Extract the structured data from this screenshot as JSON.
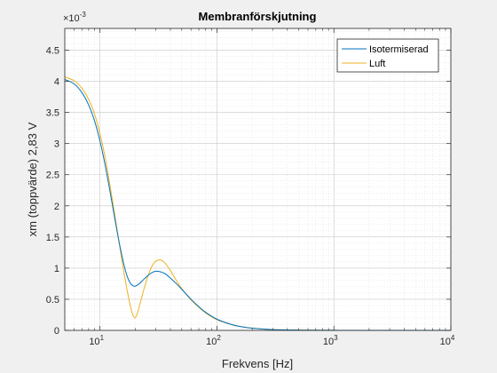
{
  "chart_data": {
    "type": "line",
    "title": "Membranförskjutning",
    "xlabel": "Frekvens [Hz]",
    "ylabel": "xm (toppvärde) 2,83 V",
    "x_scale": "log",
    "xlim": [
      5,
      10000
    ],
    "ylim": [
      0,
      0.00485
    ],
    "y_exponent_label": "×10",
    "y_exponent_power": "-3",
    "y_tick_values": [
      0,
      0.0005,
      0.001,
      0.0015,
      0.002,
      0.0025,
      0.003,
      0.0035,
      0.004,
      0.0045
    ],
    "y_tick_labels": [
      "0",
      "0.5",
      "1",
      "1.5",
      "2",
      "2.5",
      "3",
      "3.5",
      "4",
      "4.5"
    ],
    "x_tick_values": [
      10,
      100,
      1000,
      10000
    ],
    "x_tick_bases": [
      "10",
      "10",
      "10",
      "10"
    ],
    "x_tick_powers": [
      "1",
      "2",
      "3",
      "4"
    ],
    "grid": true,
    "minor_grid": true,
    "legend_position": "top-right",
    "series": [
      {
        "name": "Isotermiserad",
        "color": "#0072BD",
        "x": [
          5,
          6,
          7,
          8,
          9,
          10,
          11,
          12,
          13,
          14,
          15,
          16,
          17,
          18,
          19,
          20,
          21,
          22,
          24,
          26,
          28,
          30,
          33,
          36,
          40,
          45,
          50,
          60,
          70,
          80,
          100,
          130,
          160,
          200,
          300,
          500,
          1000,
          2000,
          5000,
          10000
        ],
        "y": [
          0.00403,
          0.00396,
          0.00382,
          0.00362,
          0.00336,
          0.00304,
          0.00268,
          0.0023,
          0.00193,
          0.00159,
          0.0013,
          0.00106,
          0.00088,
          0.00077,
          0.00072,
          0.00071,
          0.00073,
          0.00076,
          0.00083,
          0.00089,
          0.00093,
          0.00095,
          0.00094,
          0.00091,
          0.00084,
          0.00075,
          0.00066,
          0.0005,
          0.00038,
          0.00029,
          0.00018,
          0.0001,
          6e-05,
          3.5e-05,
          1.2e-05,
          4e-06,
          1e-06,
          3e-07,
          5e-08,
          1e-08
        ]
      },
      {
        "name": "Luft",
        "color": "#EDB120",
        "x": [
          5,
          6,
          7,
          8,
          9,
          10,
          11,
          12,
          13,
          14,
          15,
          16,
          17,
          18,
          19,
          20,
          21,
          22,
          24,
          26,
          28,
          30,
          33,
          36,
          40,
          45,
          50,
          60,
          70,
          80,
          100,
          130,
          160,
          200,
          300,
          500,
          1000,
          2000,
          5000,
          10000
        ],
        "y": [
          0.00407,
          0.00401,
          0.00389,
          0.00371,
          0.00347,
          0.00316,
          0.0028,
          0.0024,
          0.002,
          0.00162,
          0.00126,
          0.00094,
          0.00066,
          0.00043,
          0.00026,
          0.0002,
          0.00029,
          0.00043,
          0.00069,
          0.0009,
          0.00104,
          0.00111,
          0.00113,
          0.00108,
          0.00096,
          0.0008,
          0.00067,
          0.00049,
          0.00037,
          0.00028,
          0.00017,
          0.0001,
          6e-05,
          3.5e-05,
          1.2e-05,
          4e-06,
          1e-06,
          3e-07,
          5e-08,
          1e-08
        ]
      }
    ]
  }
}
